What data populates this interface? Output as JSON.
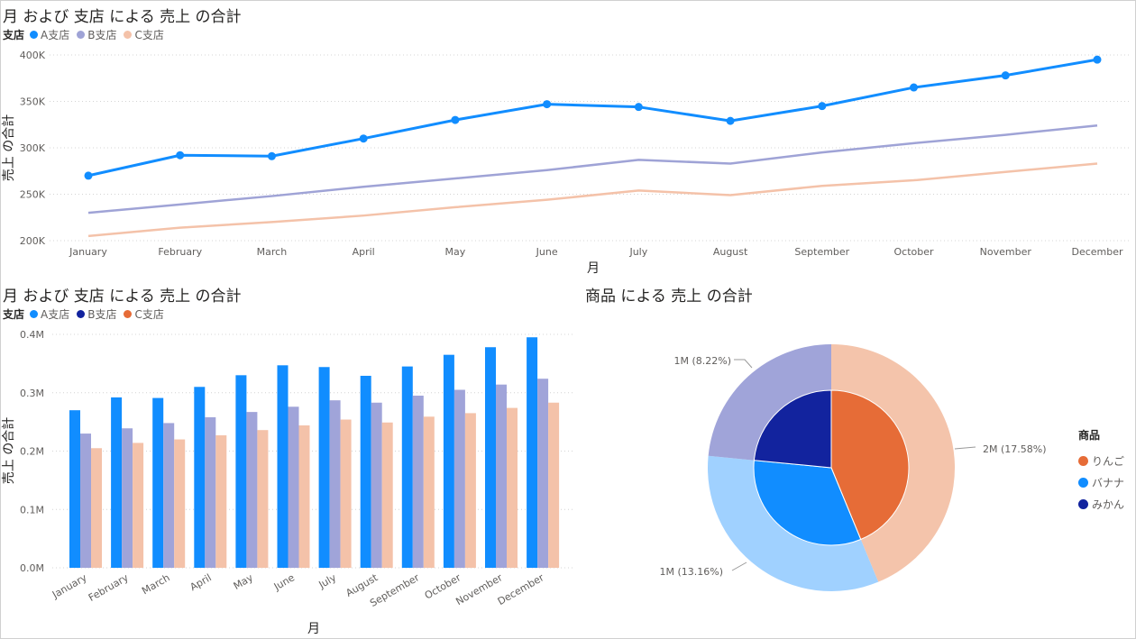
{
  "line_visual": {
    "title": "月 および 支店 による 売上 の合計",
    "legend_title": "支店"
  },
  "bar_visual": {
    "title": "月 および 支店 による 売上 の合計",
    "legend_title": "支店"
  },
  "pie_visual": {
    "title": "商品 による 売上 の合計",
    "legend_title": "商品"
  },
  "chart_data": [
    {
      "type": "line",
      "title": "月 および 支店 による 売上 の合計",
      "xlabel": "月",
      "ylabel": "売上 の合計",
      "legend_title": "支店",
      "legend_position": "top-left",
      "categories": [
        "January",
        "February",
        "March",
        "April",
        "May",
        "June",
        "July",
        "August",
        "September",
        "October",
        "November",
        "December"
      ],
      "ylim": [
        200000,
        400000
      ],
      "yticks": [
        200000,
        250000,
        300000,
        350000,
        400000
      ],
      "ytick_labels": [
        "200K",
        "250K",
        "300K",
        "350K",
        "400K"
      ],
      "grid": true,
      "series": [
        {
          "name": "A支店",
          "color": "#118dff",
          "markers": true,
          "values": [
            270000,
            292000,
            291000,
            310000,
            330000,
            347000,
            344000,
            329000,
            345000,
            365000,
            378000,
            395000
          ]
        },
        {
          "name": "B支店",
          "color": "#9fa3d6",
          "markers": false,
          "values": [
            230000,
            239000,
            248000,
            258000,
            267000,
            276000,
            287000,
            283000,
            295000,
            305000,
            314000,
            324000
          ]
        },
        {
          "name": "C支店",
          "color": "#f4c2a9",
          "markers": false,
          "values": [
            205000,
            214000,
            220000,
            227000,
            236000,
            244000,
            254000,
            249000,
            259000,
            265000,
            274000,
            283000
          ]
        }
      ]
    },
    {
      "type": "bar",
      "title": "月 および 支店 による 売上 の合計",
      "xlabel": "月",
      "ylabel": "売上 の合計",
      "legend_title": "支店",
      "legend_position": "top-left",
      "categories": [
        "January",
        "February",
        "March",
        "April",
        "May",
        "June",
        "July",
        "August",
        "September",
        "October",
        "November",
        "December"
      ],
      "ylim": [
        0,
        400000
      ],
      "yticks": [
        0,
        100000,
        200000,
        300000,
        400000
      ],
      "ytick_labels": [
        "0.0M",
        "0.1M",
        "0.2M",
        "0.3M",
        "0.4M"
      ],
      "grid": true,
      "legend": [
        {
          "name": "A支店",
          "color": "#118dff"
        },
        {
          "name": "B支店",
          "color": "#12239e"
        },
        {
          "name": "C支店",
          "color": "#e66c37"
        }
      ],
      "series": [
        {
          "name": "A支店",
          "color": "#118dff",
          "values": [
            270000,
            292000,
            291000,
            310000,
            330000,
            347000,
            344000,
            329000,
            345000,
            365000,
            378000,
            395000
          ]
        },
        {
          "name": "B支店",
          "color": "#a0a4d9",
          "values": [
            230000,
            239000,
            248000,
            258000,
            267000,
            276000,
            287000,
            283000,
            295000,
            305000,
            314000,
            324000
          ]
        },
        {
          "name": "C支店",
          "color": "#f4c2a9",
          "values": [
            205000,
            214000,
            220000,
            227000,
            236000,
            244000,
            254000,
            249000,
            259000,
            265000,
            274000,
            283000
          ]
        }
      ]
    },
    {
      "type": "pie",
      "title": "商品 による 売上 の合計",
      "legend_title": "商品",
      "legend_position": "right",
      "legend": [
        {
          "name": "りんご",
          "color": "#e66c37"
        },
        {
          "name": "バナナ",
          "color": "#118dff"
        },
        {
          "name": "みかん",
          "color": "#12239e"
        }
      ],
      "slices": [
        {
          "name": "りんご",
          "value": 43.78,
          "outer_color": "#f4c4ab",
          "inner_color": "#e66c37"
        },
        {
          "name": "バナナ",
          "value": 32.76,
          "outer_color": "#a0d1ff",
          "inner_color": "#118dff"
        },
        {
          "name": "みかん",
          "value": 23.46,
          "outer_color": "#a0a4d9",
          "inner_color": "#12239e"
        }
      ],
      "data_labels": [
        "2M (17.58%)",
        "1M (13.16%)",
        "1M (8.22%)"
      ]
    }
  ]
}
